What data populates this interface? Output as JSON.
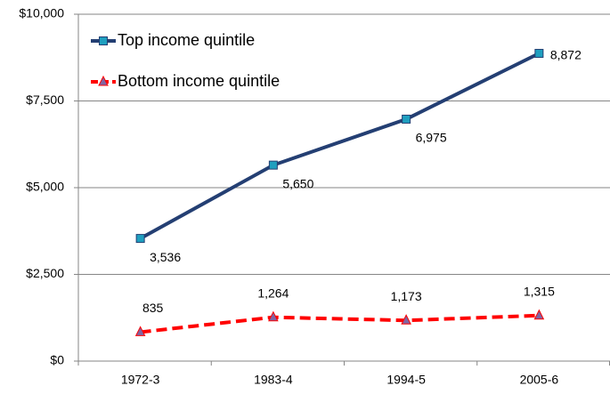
{
  "chart_data": {
    "type": "line",
    "categories": [
      "1972-3",
      "1983-4",
      "1994-5",
      "2005-6"
    ],
    "series": [
      {
        "name": "Top income quintile",
        "color": "#243f73",
        "marker_color": "#1f9fbf",
        "marker": "square",
        "dash": false,
        "values": [
          3536,
          5650,
          6975,
          8872
        ],
        "value_labels": [
          "3,536",
          "5,650",
          "6,975",
          "8,872"
        ]
      },
      {
        "name": "Bottom income quintile",
        "color": "#ff0000",
        "marker_color": "#8064a2",
        "marker": "triangle",
        "dash": true,
        "values": [
          835,
          1264,
          1173,
          1315
        ],
        "value_labels": [
          "835",
          "1,264",
          "1,173",
          "1,315"
        ]
      }
    ],
    "ylim": [
      0,
      10000
    ],
    "yticks": [
      {
        "value": 0,
        "label": "$0"
      },
      {
        "value": 2500,
        "label": "$2,500"
      },
      {
        "value": 5000,
        "label": "$5,000"
      },
      {
        "value": 7500,
        "label": "$7,500"
      },
      {
        "value": 10000,
        "label": "$10,000"
      }
    ],
    "grid": true,
    "legend": "top-left"
  }
}
